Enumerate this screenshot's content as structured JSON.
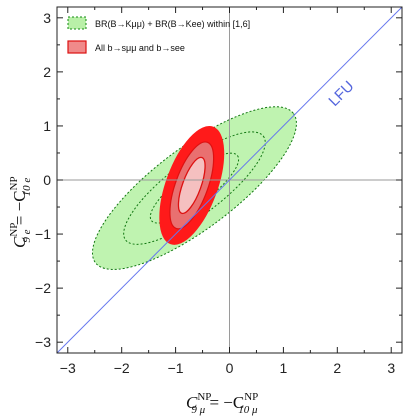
{
  "chart_data": {
    "type": "scatter",
    "x_range": [
      -3.2,
      3.2
    ],
    "y_range": [
      -3.2,
      3.2
    ],
    "x_ticks": [
      -3,
      -2,
      -1,
      0,
      1,
      2,
      3
    ],
    "y_ticks": [
      -3,
      -2,
      -1,
      0,
      1,
      2,
      3
    ],
    "x_tick_labels": [
      "−3",
      "−2",
      "−1",
      "0",
      "1",
      "2",
      "3"
    ],
    "y_tick_labels": [
      "−3",
      "−2",
      "−1",
      "0",
      "1",
      "2",
      "3"
    ],
    "xlabel": {
      "main": "C",
      "sub": "9 μ",
      "sup": "NP",
      "eq": " = −C",
      "sub2": "10 μ",
      "sup2": "NP"
    },
    "ylabel": {
      "main": "C",
      "sub": "9 e",
      "sup": "NP",
      "eq": " = −C",
      "sub2": "10 e",
      "sup2": "NP"
    },
    "grid": false,
    "crosshair_at": [
      0,
      0
    ],
    "legend_position": "top-left",
    "legend": [
      {
        "label": "BR(B→Kμμ) + BR(B→Kee) within [1,6]",
        "color": "#66dd55",
        "style": "dotted-fill"
      },
      {
        "label": "All b→sμμ and b→see",
        "color": "#ee3333",
        "style": "solid-fill"
      }
    ],
    "annotations": [
      {
        "text": "LFU",
        "at": [
          1.95,
          1.35
        ],
        "color": "#5566dd"
      }
    ],
    "series": [
      {
        "name": "BR(B→Kμμ) + BR(B→Kee) within [1,6]",
        "kind": "confidence_regions",
        "center": [
          -0.65,
          -0.15
        ],
        "color": "#66dd55",
        "levels": [
          {
            "sigma": 1,
            "semi_axes": [
              1.0,
              0.3
            ],
            "angle_deg": 37
          },
          {
            "sigma": 2,
            "semi_axes": [
              1.6,
              0.5
            ],
            "angle_deg": 37
          },
          {
            "sigma": 3,
            "semi_axes": [
              2.3,
              0.75
            ],
            "angle_deg": 37
          }
        ]
      },
      {
        "name": "All b→sμμ and b→see",
        "kind": "confidence_regions",
        "center": [
          -0.7,
          -0.1
        ],
        "color": "#ee3333",
        "levels": [
          {
            "sigma": 1,
            "semi_axes": [
              0.55,
              0.17
            ],
            "angle_deg": 70
          },
          {
            "sigma": 2,
            "semi_axes": [
              0.85,
              0.3
            ],
            "angle_deg": 70
          },
          {
            "sigma": 3,
            "semi_axes": [
              1.15,
              0.47
            ],
            "angle_deg": 70
          }
        ]
      },
      {
        "name": "LFU",
        "kind": "line",
        "x": [
          -3.2,
          3.2
        ],
        "y": [
          -3.2,
          3.2
        ],
        "color": "#6677ee"
      }
    ]
  }
}
